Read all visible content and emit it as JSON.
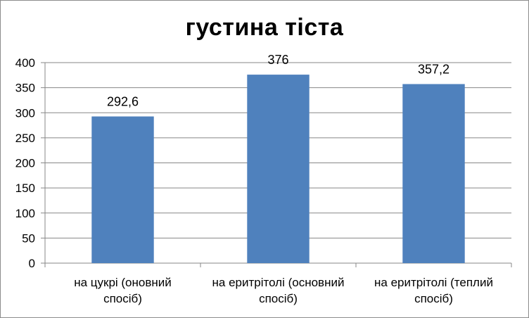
{
  "chart_data": {
    "type": "bar",
    "title": "густина тіста",
    "categories": [
      [
        "на цукрі (оновний",
        "спосіб)"
      ],
      [
        "на еритрітолі (основний",
        "спосіб)"
      ],
      [
        "на еритрітолі (теплий",
        "спосіб)"
      ]
    ],
    "values": [
      292.6,
      376,
      357.2
    ],
    "data_labels": [
      "292,6",
      "376",
      "357,2"
    ],
    "ylim": [
      0,
      400
    ],
    "yticks": [
      0,
      50,
      100,
      150,
      200,
      250,
      300,
      350,
      400
    ],
    "grid": true,
    "legend": "none",
    "bar_color": "#4f81bd"
  }
}
